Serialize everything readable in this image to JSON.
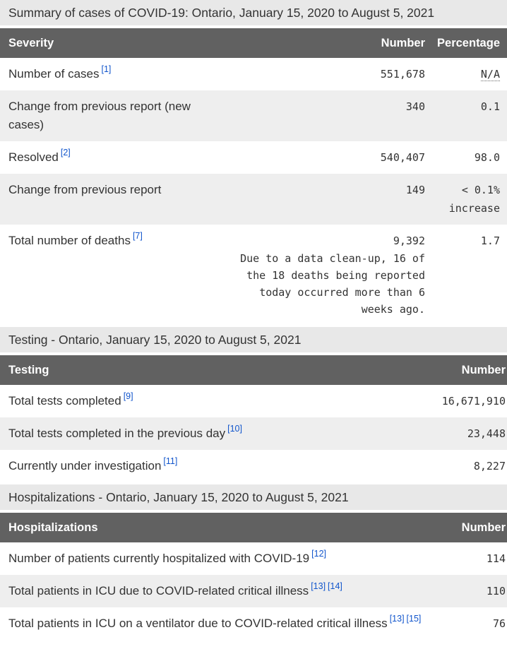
{
  "summary": {
    "title": "Summary of cases of COVID-19: Ontario, January 15, 2020 to August 5, 2021",
    "table": {
      "headers": {
        "label": "Severity",
        "number": "Number",
        "percentage": "Percentage"
      },
      "rows": [
        {
          "label": "Number of cases",
          "footnotes": [
            "1"
          ],
          "number": "551,678",
          "percentage": "N/A",
          "percentage_abbr": true
        },
        {
          "label": "Change from previous report (new cases)",
          "footnotes": [],
          "number": "340",
          "percentage": "0.1"
        },
        {
          "label": "Resolved",
          "footnotes": [
            "2"
          ],
          "number": "540,407",
          "percentage": "98.0"
        },
        {
          "label": "Change from previous report",
          "footnotes": [],
          "number": "149",
          "percentage": "< 0.1% increase"
        },
        {
          "label": "Total number of deaths",
          "footnotes": [
            "7"
          ],
          "number": "9,392",
          "number_note": "Due to a data clean-up, 16 of the 18 deaths being reported today occurred more than 6 weeks ago.",
          "percentage": "1.7"
        }
      ]
    }
  },
  "testing": {
    "title": "Testing - Ontario, January 15, 2020 to August 5, 2021",
    "table": {
      "headers": {
        "label": "Testing",
        "number": "Number"
      },
      "rows": [
        {
          "label": "Total tests completed",
          "footnotes": [
            "9"
          ],
          "number": "16,671,910"
        },
        {
          "label": "Total tests completed in the previous day",
          "footnotes": [
            "10"
          ],
          "number": "23,448"
        },
        {
          "label": "Currently under investigation",
          "footnotes": [
            "11"
          ],
          "number": "8,227"
        }
      ]
    }
  },
  "hospitalizations": {
    "title": "Hospitalizations - Ontario, January 15, 2020 to August 5, 2021",
    "table": {
      "headers": {
        "label": "Hospitalizations",
        "number": "Number"
      },
      "rows": [
        {
          "label": "Number of patients currently hospitalized with COVID-19",
          "footnotes": [
            "12"
          ],
          "number": "114"
        },
        {
          "label": "Total patients in ICU due to COVID-related critical illness",
          "footnotes": [
            "13",
            "14"
          ],
          "number": "110"
        },
        {
          "label": "Total patients in ICU on a ventilator due to COVID-related critical illness",
          "footnotes": [
            "13",
            "15"
          ],
          "number": "76"
        }
      ]
    }
  },
  "colors": {
    "link_blue": "#1155cc",
    "table_header_bg": "#616161",
    "table_header_text": "#ffffff",
    "section_bar_bg": "#e8e8e8",
    "stripe_bg": "#eeeeee",
    "body_text": "#333333"
  }
}
